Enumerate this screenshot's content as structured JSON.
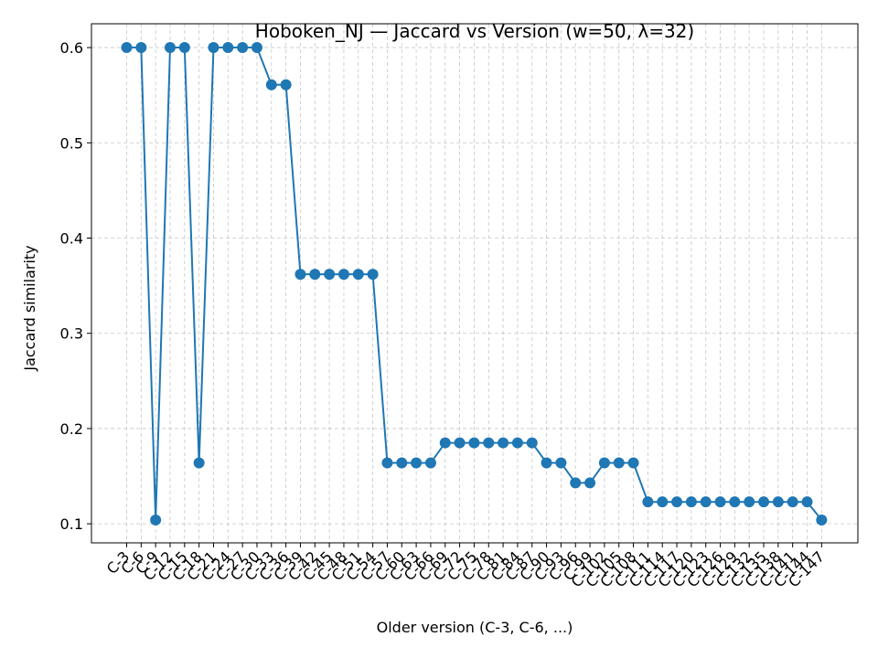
{
  "chart_data": {
    "type": "line",
    "title": "Hoboken_NJ — Jaccard vs Version (w=50, λ=32)",
    "xlabel": "Older version (C-3, C-6, ...)",
    "ylabel": "Jaccard similarity",
    "ylim": [
      0.08,
      0.625
    ],
    "yticks": [
      0.1,
      0.2,
      0.3,
      0.4,
      0.5,
      0.6
    ],
    "ytick_labels": [
      "0.1",
      "0.2",
      "0.3",
      "0.4",
      "0.5",
      "0.6"
    ],
    "grid": true,
    "categories": [
      "C-3",
      "C-6",
      "C-9",
      "C-12",
      "C-15",
      "C-18",
      "C-21",
      "C-24",
      "C-27",
      "C-30",
      "C-33",
      "C-36",
      "C-39",
      "C-42",
      "C-45",
      "C-48",
      "C-51",
      "C-54",
      "C-57",
      "C-60",
      "C-63",
      "C-66",
      "C-69",
      "C-72",
      "C-75",
      "C-78",
      "C-81",
      "C-84",
      "C-87",
      "C-90",
      "C-93",
      "C-96",
      "C-99",
      "C-102",
      "C-105",
      "C-108",
      "C-111",
      "C-114",
      "C-117",
      "C-120",
      "C-123",
      "C-126",
      "C-129",
      "C-132",
      "C-135",
      "C-138",
      "C-141",
      "C-144",
      "C-147"
    ],
    "series": [
      {
        "color": "#1f77b4",
        "values": [
          0.6,
          0.6,
          0.104,
          0.6,
          0.6,
          0.164,
          0.6,
          0.6,
          0.6,
          0.6,
          0.561,
          0.561,
          0.362,
          0.362,
          0.362,
          0.362,
          0.362,
          0.362,
          0.164,
          0.164,
          0.164,
          0.164,
          0.185,
          0.185,
          0.185,
          0.185,
          0.185,
          0.185,
          0.185,
          0.164,
          0.164,
          0.143,
          0.143,
          0.164,
          0.164,
          0.164,
          0.123,
          0.123,
          0.123,
          0.123,
          0.123,
          0.123,
          0.123,
          0.123,
          0.123,
          0.123,
          0.123,
          0.123,
          0.104
        ]
      }
    ]
  }
}
